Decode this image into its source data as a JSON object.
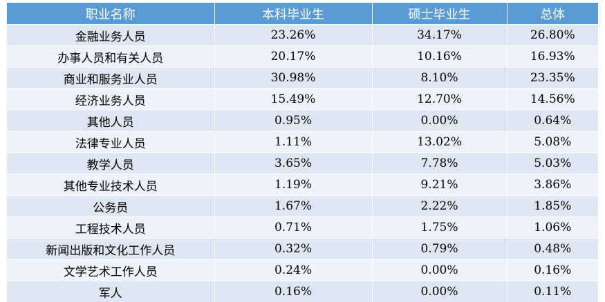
{
  "table": {
    "headers": [
      "职业名称",
      "本科毕业生",
      "硕士毕业生",
      "总体"
    ],
    "rows": [
      [
        "金融业务人员",
        "23.26%",
        "34.17%",
        "26.80%"
      ],
      [
        "办事人员和有关人员",
        "20.17%",
        "10.16%",
        "16.93%"
      ],
      [
        "商业和服务业人员",
        "30.98%",
        "8.10%",
        "23.35%"
      ],
      [
        "经济业务人员",
        "15.49%",
        "12.70%",
        "14.56%"
      ],
      [
        "其他人员",
        "0.95%",
        "0.00%",
        "0.64%"
      ],
      [
        "法律专业人员",
        "1.11%",
        "13.02%",
        "5.08%"
      ],
      [
        "教学人员",
        "3.65%",
        "7.78%",
        "5.03%"
      ],
      [
        "其他专业技术人员",
        "1.19%",
        "9.21%",
        "3.86%"
      ],
      [
        "公务员",
        "1.67%",
        "2.22%",
        "1.85%"
      ],
      [
        "工程技术人员",
        "0.71%",
        "1.75%",
        "1.06%"
      ],
      [
        "新闻出版和文化工作人员",
        "0.32%",
        "0.79%",
        "0.48%"
      ],
      [
        "文学艺术工作人员",
        "0.24%",
        "0.00%",
        "0.16%"
      ],
      [
        "军人",
        "0.16%",
        "0.00%",
        "0.11%"
      ]
    ]
  },
  "colors": {
    "header_bg": "#5b9bd5",
    "row_even_bg": "#dde6f3",
    "row_odd_bg": "#eef2f9"
  }
}
